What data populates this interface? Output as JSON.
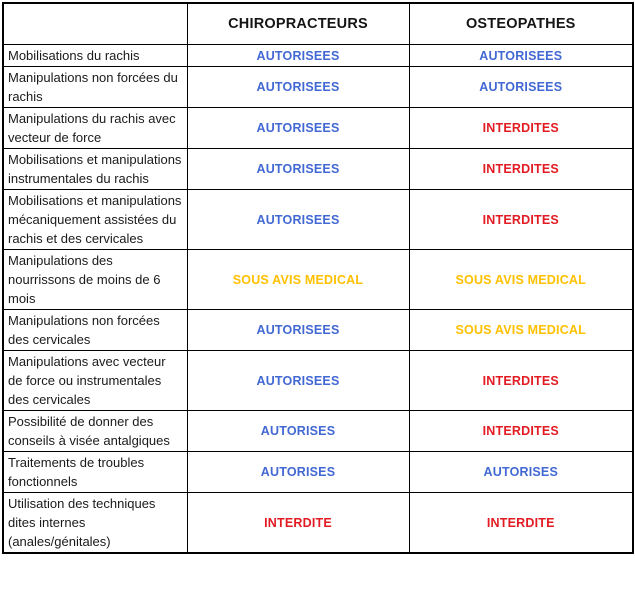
{
  "colors": {
    "autorisees": "#4268d3",
    "interdites": "#e31b23",
    "sousavis": "#ffc000"
  },
  "table": {
    "columns": [
      {
        "label": ""
      },
      {
        "label": "CHIROPRACTEURS"
      },
      {
        "label": "OSTEOPATHES"
      }
    ],
    "rows": [
      {
        "label": "Mobilisations du rachis",
        "cells": [
          {
            "text": "AUTORISEES",
            "status": "autorisees"
          },
          {
            "text": "AUTORISEES",
            "status": "autorisees"
          }
        ]
      },
      {
        "label": "Manipulations non forcées du rachis",
        "cells": [
          {
            "text": "AUTORISEES",
            "status": "autorisees"
          },
          {
            "text": "AUTORISEES",
            "status": "autorisees"
          }
        ]
      },
      {
        "label": "Manipulations du rachis avec vecteur de force",
        "cells": [
          {
            "text": "AUTORISEES",
            "status": "autorisees"
          },
          {
            "text": "INTERDITES",
            "status": "interdites"
          }
        ]
      },
      {
        "label": "Mobilisations et manipulations instrumentales du rachis",
        "cells": [
          {
            "text": "AUTORISEES",
            "status": "autorisees"
          },
          {
            "text": "INTERDITES",
            "status": "interdites"
          }
        ]
      },
      {
        "label": "Mobilisations et manipulations mécaniquement assistées du rachis et des cervicales",
        "cells": [
          {
            "text": "AUTORISEES",
            "status": "autorisees"
          },
          {
            "text": "INTERDITES",
            "status": "interdites"
          }
        ]
      },
      {
        "label": "Manipulations des nourrissons de moins de 6 mois",
        "cells": [
          {
            "text": "SOUS AVIS MEDICAL",
            "status": "sous-avis"
          },
          {
            "text": "SOUS AVIS MEDICAL",
            "status": "sous-avis"
          }
        ]
      },
      {
        "label": "Manipulations non forcées des cervicales",
        "cells": [
          {
            "text": "AUTORISEES",
            "status": "autorisees"
          },
          {
            "text": "SOUS AVIS MEDICAL",
            "status": "sous-avis"
          }
        ]
      },
      {
        "label": "Manipulations avec vecteur de force ou instrumentales des cervicales",
        "cells": [
          {
            "text": "AUTORISEES",
            "status": "autorisees"
          },
          {
            "text": "INTERDITES",
            "status": "interdites"
          }
        ]
      },
      {
        "label": "Possibilité de donner des conseils à visée antalgiques",
        "cells": [
          {
            "text": "AUTORISES",
            "status": "autorisees"
          },
          {
            "text": "INTERDITES",
            "status": "interdites"
          }
        ]
      },
      {
        "label": "Traitements de troubles fonctionnels",
        "cells": [
          {
            "text": "AUTORISES",
            "status": "autorisees"
          },
          {
            "text": "AUTORISES",
            "status": "autorisees"
          }
        ]
      },
      {
        "label": "Utilisation des techniques dites internes (anales/génitales)",
        "cells": [
          {
            "text": "INTERDITE",
            "status": "interdites"
          },
          {
            "text": "INTERDITE",
            "status": "interdites"
          }
        ]
      }
    ]
  }
}
